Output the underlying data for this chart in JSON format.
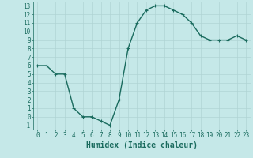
{
  "x": [
    0,
    1,
    2,
    3,
    4,
    5,
    6,
    7,
    8,
    9,
    10,
    11,
    12,
    13,
    14,
    15,
    16,
    17,
    18,
    19,
    20,
    21,
    22,
    23
  ],
  "y": [
    6,
    6,
    5,
    5,
    1,
    0,
    0,
    -0.5,
    -1,
    2,
    8,
    11,
    12.5,
    13,
    13,
    12.5,
    12,
    11,
    9.5,
    9,
    9,
    9,
    9.5,
    9
  ],
  "line_color": "#1a6b5e",
  "marker": "+",
  "marker_size": 3,
  "bg_color": "#c5e8e8",
  "grid_color": "#b0d4d4",
  "xlabel": "Humidex (Indice chaleur)",
  "xlabel_fontsize": 7,
  "ylim": [
    -1.5,
    13.5
  ],
  "xlim": [
    -0.5,
    23.5
  ],
  "yticks": [
    -1,
    0,
    1,
    2,
    3,
    4,
    5,
    6,
    7,
    8,
    9,
    10,
    11,
    12,
    13
  ],
  "xticks": [
    0,
    1,
    2,
    3,
    4,
    5,
    6,
    7,
    8,
    9,
    10,
    11,
    12,
    13,
    14,
    15,
    16,
    17,
    18,
    19,
    20,
    21,
    22,
    23
  ],
  "tick_fontsize": 5.5,
  "tick_color": "#1a6b5e",
  "axis_color": "#1a6b5e",
  "linewidth": 1.0,
  "marker_edge_width": 0.8
}
